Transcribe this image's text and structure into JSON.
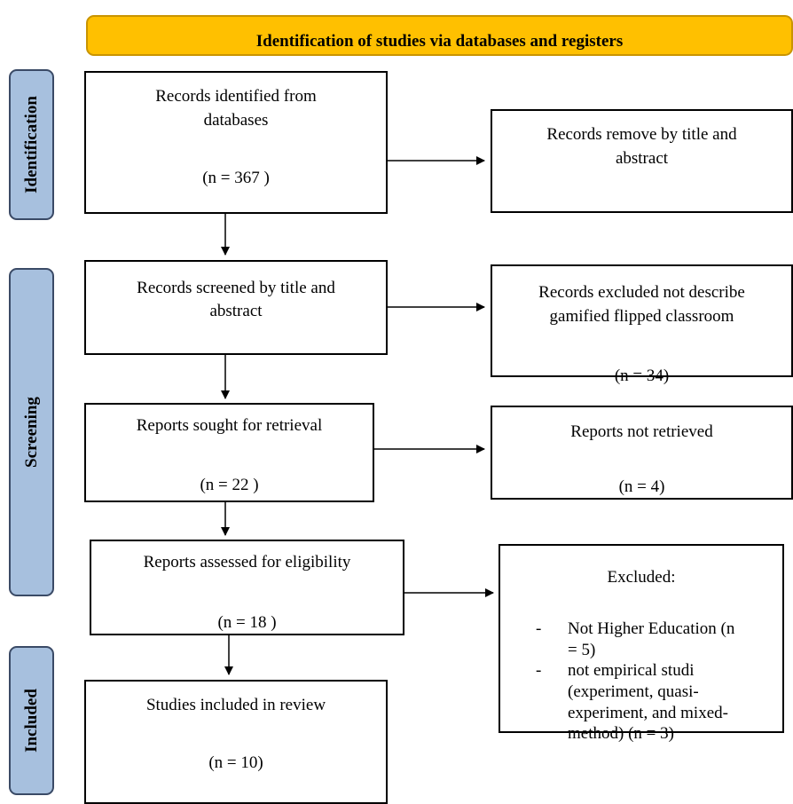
{
  "header": {
    "title": "Identification of studies via databases and registers"
  },
  "sidebar": {
    "identification": "Identification",
    "screening": "Screening",
    "included": "Included"
  },
  "boxes": {
    "records_identified": {
      "line1": "Records identified from",
      "line2": "databases",
      "count": "(n = 367 )"
    },
    "records_removed": {
      "line1": "Records remove by title and",
      "line2": "abstract"
    },
    "records_screened": {
      "line1": "Records screened by title and",
      "line2": "abstract"
    },
    "records_excluded": {
      "line1": "Records excluded not describe",
      "line2": "gamified flipped classroom",
      "count": "(n = 34)"
    },
    "reports_sought": {
      "line1": "Reports sought for retrieval",
      "count": "(n = 22 )"
    },
    "reports_not_retrieved": {
      "line1": "Reports not retrieved",
      "count": "(n = 4)"
    },
    "reports_assessed": {
      "line1": "Reports assessed for eligibility",
      "count": "(n = 18 )"
    },
    "excluded": {
      "title": "Excluded:",
      "bullet": "-",
      "item1_l1": "Not Higher Education (n",
      "item1_l2": "= 5)",
      "item2_l1": "not empirical studi",
      "item2_l2": "(experiment, quasi-",
      "item2_l3": "experiment, and mixed-",
      "item2_l4": "method) (n = 3)"
    },
    "studies_included": {
      "line1": "Studies included in review",
      "count": "(n = 10)"
    }
  }
}
